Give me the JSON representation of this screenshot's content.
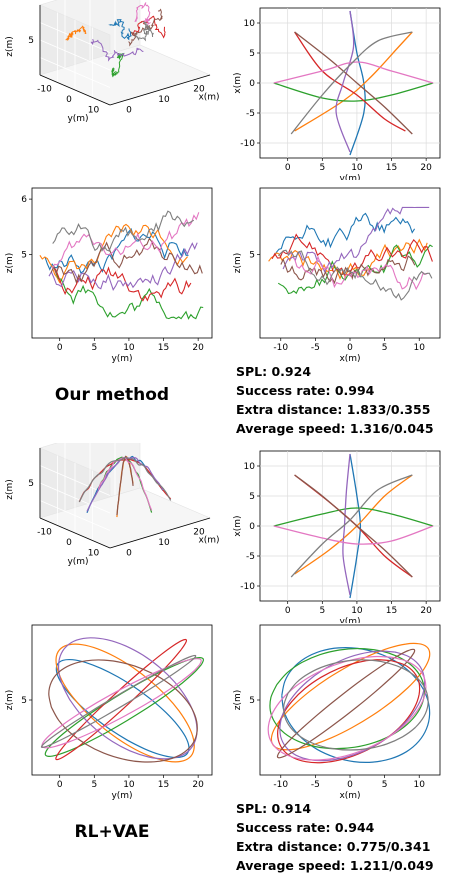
{
  "chart_data": [
    {
      "type": "line3d",
      "panel": "our-3d",
      "title": "",
      "xlabel": "x(m)",
      "ylabel": "y(m)",
      "zlabel": "z(m)",
      "x_ticks": [
        "0",
        "10",
        "20"
      ],
      "y_ticks": [
        "-10",
        "0",
        "10"
      ],
      "z_ticks": [
        "5"
      ],
      "style": "noisy"
    },
    {
      "type": "line",
      "panel": "our-xy",
      "xlabel": "y(m)",
      "ylabel": "x(m)",
      "xlim": [
        -4,
        22
      ],
      "ylim": [
        -12.5,
        12.5
      ],
      "x_ticks": [
        "0",
        "5",
        "10",
        "15",
        "20"
      ],
      "y_ticks": [
        "-10",
        "-5",
        "0",
        "5",
        "10"
      ],
      "grid": true,
      "series": [
        {
          "color": "#1f77b4",
          "points": [
            [
              9,
              -12
            ],
            [
              11,
              -5
            ],
            [
              11,
              0
            ],
            [
              10,
              5
            ],
            [
              9,
              12
            ]
          ]
        },
        {
          "color": "#ff7f0e",
          "points": [
            [
              1,
              -8
            ],
            [
              8,
              -3
            ],
            [
              12,
              1
            ],
            [
              16,
              6
            ],
            [
              18,
              8.5
            ]
          ]
        },
        {
          "color": "#2ca02c",
          "points": [
            [
              -2,
              0
            ],
            [
              5,
              -2.5
            ],
            [
              10,
              -3
            ],
            [
              15,
              -2
            ],
            [
              21,
              0
            ]
          ]
        },
        {
          "color": "#d62728",
          "points": [
            [
              1,
              8.5
            ],
            [
              5,
              2
            ],
            [
              10,
              -2
            ],
            [
              14,
              -6
            ],
            [
              17,
              -8
            ]
          ]
        },
        {
          "color": "#9467bd",
          "points": [
            [
              9,
              -11.5
            ],
            [
              7,
              -5
            ],
            [
              8,
              0
            ],
            [
              9.5,
              6
            ],
            [
              9,
              12
            ]
          ]
        },
        {
          "color": "#8c564b",
          "points": [
            [
              1,
              8.5
            ],
            [
              6,
              4
            ],
            [
              10,
              0
            ],
            [
              14,
              -4
            ],
            [
              18,
              -8.5
            ]
          ]
        },
        {
          "color": "#e377c2",
          "points": [
            [
              -2,
              0
            ],
            [
              5,
              2
            ],
            [
              10,
              3.5
            ],
            [
              15,
              2
            ],
            [
              21,
              0
            ]
          ]
        },
        {
          "color": "#7f7f7f",
          "points": [
            [
              0.5,
              -8.5
            ],
            [
              5,
              -2
            ],
            [
              9,
              3
            ],
            [
              13,
              7
            ],
            [
              18,
              8.5
            ]
          ]
        }
      ]
    },
    {
      "type": "line",
      "panel": "our-yz",
      "xlabel": "y(m)",
      "ylabel": "z(m)",
      "xlim": [
        -4,
        22
      ],
      "ylim": [
        3.5,
        6.2
      ],
      "x_ticks": [
        "0",
        "5",
        "10",
        "15",
        "20"
      ],
      "y_ticks": [
        "5",
        "6"
      ],
      "grid": false,
      "style": "noisy"
    },
    {
      "type": "line",
      "panel": "our-xz",
      "xlabel": "x(m)",
      "ylabel": "z(m)",
      "xlim": [
        -13,
        13
      ],
      "ylim": [
        3.5,
        6.2
      ],
      "x_ticks": [
        "-10",
        "-5",
        "0",
        "5",
        "10"
      ],
      "y_ticks": [
        "5"
      ],
      "grid": false,
      "style": "noisy"
    },
    {
      "type": "line3d",
      "panel": "rl-3d",
      "xlabel": "x(m)",
      "ylabel": "y(m)",
      "zlabel": "z(m)",
      "x_ticks": [
        "0",
        "10",
        "20"
      ],
      "y_ticks": [
        "-10",
        "0",
        "10"
      ],
      "z_ticks": [
        "5"
      ],
      "style": "smooth"
    },
    {
      "type": "line",
      "panel": "rl-xy",
      "xlabel": "y(m)",
      "ylabel": "x(m)",
      "xlim": [
        -4,
        22
      ],
      "ylim": [
        -12.5,
        12.5
      ],
      "x_ticks": [
        "0",
        "5",
        "10",
        "15",
        "20"
      ],
      "y_ticks": [
        "-10",
        "-5",
        "0",
        "5",
        "10"
      ],
      "grid": true,
      "series": [
        {
          "color": "#1f77b4",
          "points": [
            [
              9,
              -12
            ],
            [
              10,
              -5
            ],
            [
              10.5,
              0
            ],
            [
              10,
              5
            ],
            [
              9,
              12
            ]
          ]
        },
        {
          "color": "#ff7f0e",
          "points": [
            [
              1,
              -8
            ],
            [
              6,
              -4
            ],
            [
              10,
              0
            ],
            [
              14,
              5
            ],
            [
              18,
              8.5
            ]
          ]
        },
        {
          "color": "#2ca02c",
          "points": [
            [
              -2,
              0
            ],
            [
              5,
              2
            ],
            [
              10,
              3
            ],
            [
              15,
              2
            ],
            [
              21,
              0
            ]
          ]
        },
        {
          "color": "#d62728",
          "points": [
            [
              1,
              8.5
            ],
            [
              6,
              4
            ],
            [
              10,
              0
            ],
            [
              14,
              -5
            ],
            [
              18,
              -8.5
            ]
          ]
        },
        {
          "color": "#9467bd",
          "points": [
            [
              9,
              -11.5
            ],
            [
              8,
              -5
            ],
            [
              8.2,
              0
            ],
            [
              8.5,
              6
            ],
            [
              9,
              12
            ]
          ]
        },
        {
          "color": "#8c564b",
          "points": [
            [
              1,
              8.5
            ],
            [
              5,
              5
            ],
            [
              9.5,
              0.5
            ],
            [
              14,
              -4
            ],
            [
              18,
              -8.5
            ]
          ]
        },
        {
          "color": "#e377c2",
          "points": [
            [
              -2,
              0
            ],
            [
              5,
              -2
            ],
            [
              10,
              -3
            ],
            [
              15,
              -2.5
            ],
            [
              21,
              0
            ]
          ]
        },
        {
          "color": "#7f7f7f",
          "points": [
            [
              0.5,
              -8.5
            ],
            [
              5,
              -3
            ],
            [
              9,
              1
            ],
            [
              13,
              6
            ],
            [
              18,
              8.5
            ]
          ]
        }
      ]
    },
    {
      "type": "line",
      "panel": "rl-yz",
      "xlabel": "y(m)",
      "ylabel": "z(m)",
      "xlim": [
        -4,
        22
      ],
      "ylim": [
        2.5,
        7.5
      ],
      "x_ticks": [
        "0",
        "5",
        "10",
        "15",
        "20"
      ],
      "y_ticks": [
        "5"
      ],
      "grid": false,
      "style": "smooth"
    },
    {
      "type": "line",
      "panel": "rl-xz",
      "xlabel": "x(m)",
      "ylabel": "z(m)",
      "xlim": [
        -13,
        13
      ],
      "ylim": [
        2.5,
        7.5
      ],
      "x_ticks": [
        "-10",
        "-5",
        "0",
        "5",
        "10"
      ],
      "y_ticks": [
        "5"
      ],
      "grid": false,
      "style": "smooth"
    }
  ],
  "palette": [
    "#1f77b4",
    "#ff7f0e",
    "#2ca02c",
    "#d62728",
    "#9467bd",
    "#8c564b",
    "#e377c2",
    "#7f7f7f"
  ],
  "methods": [
    {
      "name": "Our  method",
      "metrics": [
        "SPL: 0.924",
        "Success  rate: 0.994",
        "Extra distance: 1.833/0.355",
        "Average speed: 1.316/0.045"
      ]
    },
    {
      "name": "RL+VAE",
      "metrics": [
        "SPL: 0.914",
        "Success  rate: 0.944",
        "Extra distance: 0.775/0.341",
        "Average speed: 1.211/0.049"
      ]
    }
  ]
}
